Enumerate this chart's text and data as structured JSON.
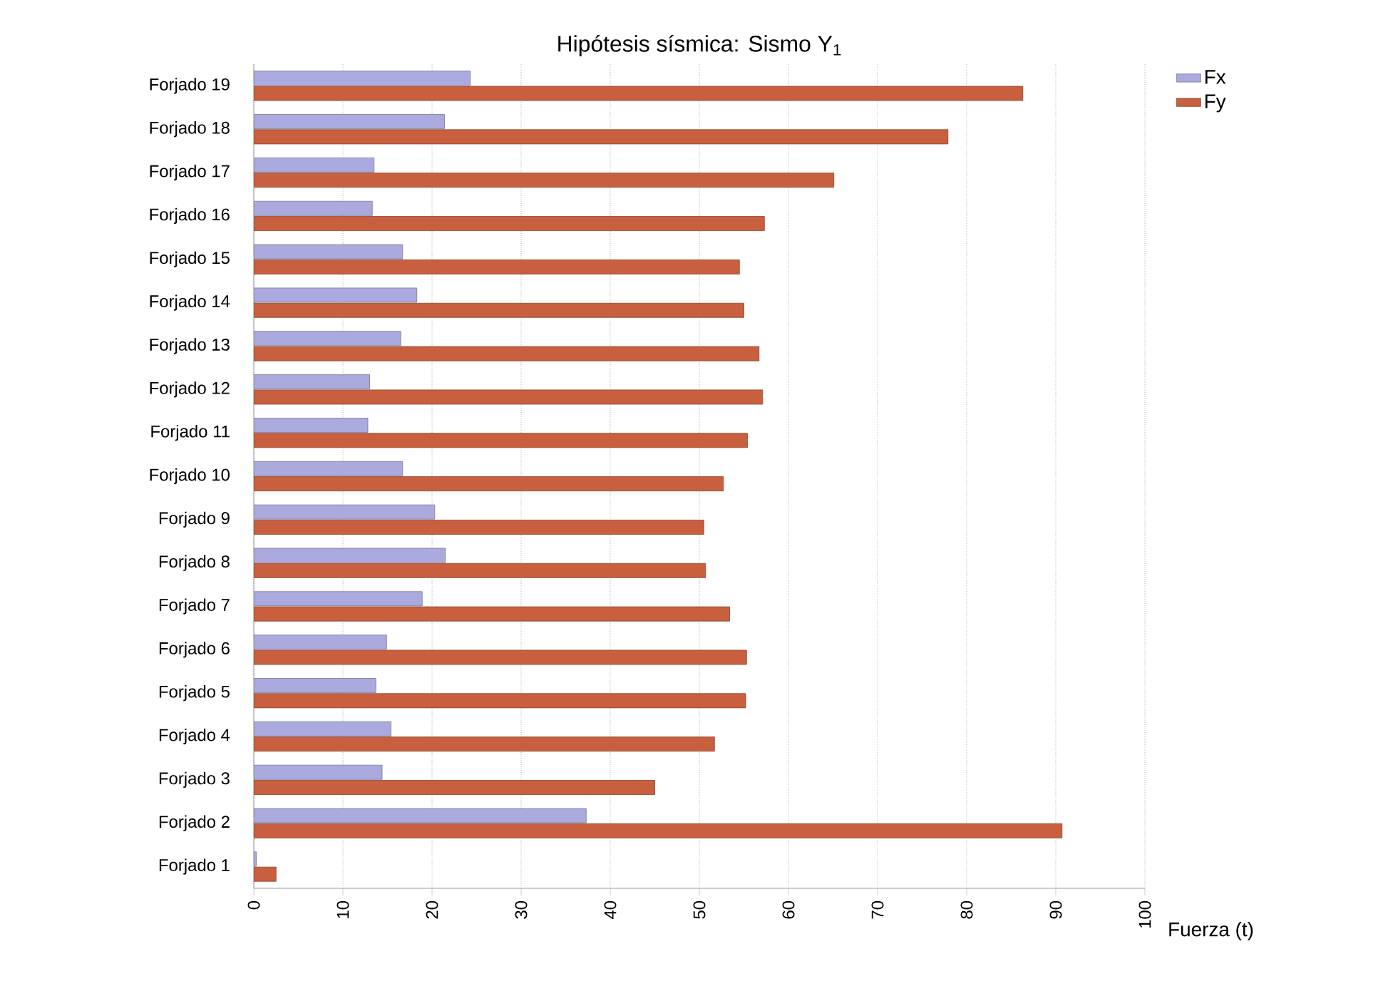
{
  "chart_data": {
    "type": "bar",
    "orientation": "horizontal",
    "title": "Hipótesis sísmica: Sismo Y$_{1}$",
    "xlabel": "Fuerza (t)",
    "categories": [
      "Forjado 19",
      "Forjado 18",
      "Forjado 17",
      "Forjado 16",
      "Forjado 15",
      "Forjado 14",
      "Forjado 13",
      "Forjado 12",
      "Forjado 11",
      "Forjado 10",
      "Forjado 9",
      "Forjado 8",
      "Forjado 7",
      "Forjado 6",
      "Forjado 5",
      "Forjado 4",
      "Forjado 3",
      "Forjado 2",
      "Forjado 1"
    ],
    "series": [
      {
        "name": "Fx",
        "color": "#aaaade",
        "values": [
          24.3,
          21.4,
          13.5,
          13.3,
          16.7,
          18.3,
          16.5,
          13.0,
          12.8,
          16.7,
          20.3,
          21.5,
          18.9,
          14.9,
          13.7,
          15.4,
          14.4,
          37.3,
          0.3
        ]
      },
      {
        "name": "Fy",
        "color": "#c8603f",
        "values": [
          86.3,
          77.9,
          65.1,
          57.3,
          54.5,
          55.0,
          56.7,
          57.1,
          55.4,
          52.7,
          50.5,
          50.7,
          53.4,
          55.3,
          55.2,
          51.7,
          45.0,
          90.7,
          2.5
        ]
      }
    ],
    "xlim": [
      0,
      100
    ],
    "xticks": [
      0,
      10,
      20,
      30,
      40,
      50,
      60,
      70,
      80,
      90,
      100
    ],
    "grid": "x",
    "legend": "top right"
  }
}
